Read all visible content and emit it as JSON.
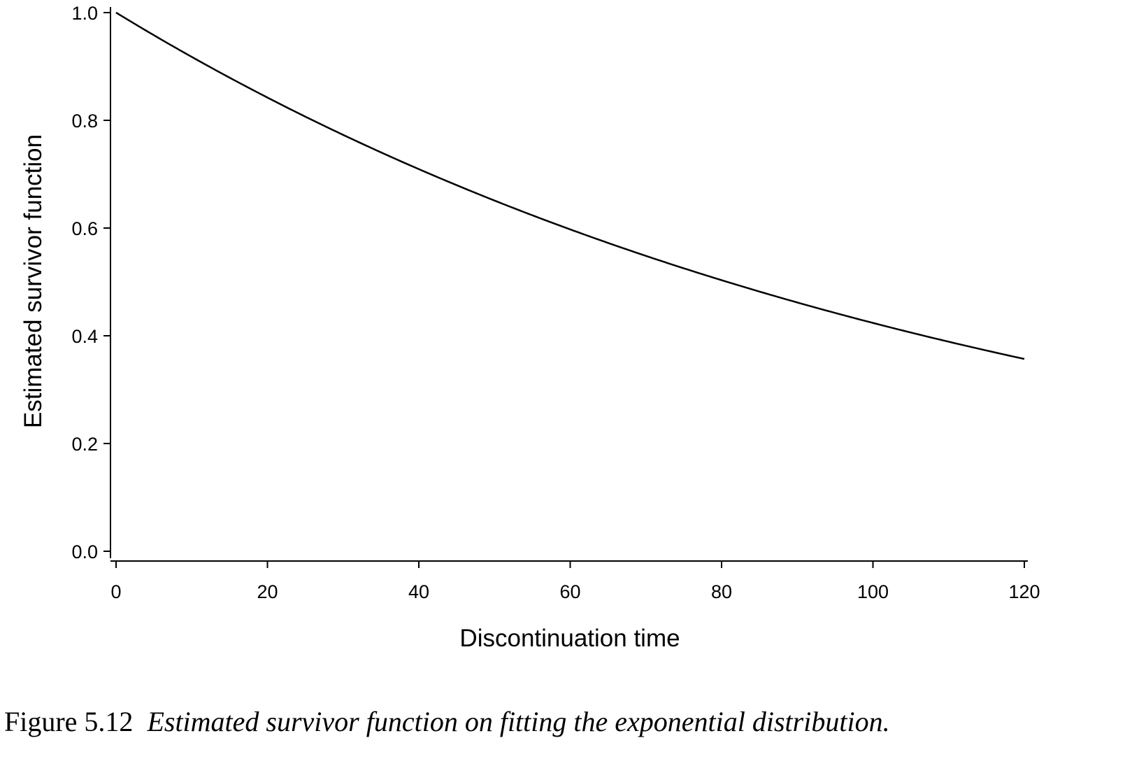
{
  "chart_data": {
    "type": "line",
    "title": "",
    "xlabel": "Discontinuation time",
    "ylabel": "Estimated survivor function",
    "xlim": [
      0,
      120
    ],
    "ylim": [
      0,
      1.0
    ],
    "xticks": [
      0,
      20,
      40,
      60,
      80,
      100,
      120
    ],
    "xtick_labels": [
      "0",
      "20",
      "40",
      "60",
      "80",
      "100",
      "120"
    ],
    "yticks": [
      0,
      0.2,
      0.4,
      0.6,
      0.8,
      1.0
    ],
    "ytick_labels": [
      "0.0",
      "0.2",
      "0.4",
      "0.6",
      "0.8",
      "1.0"
    ],
    "grid": false,
    "series": [
      {
        "name": "Estimated survivor function",
        "x": [
          0,
          10,
          20,
          30,
          40,
          50,
          60,
          70,
          80,
          90,
          100,
          110,
          120
        ],
        "y": [
          1.0,
          0.918,
          0.842,
          0.773,
          0.709,
          0.651,
          0.597,
          0.548,
          0.503,
          0.462,
          0.424,
          0.389,
          0.357
        ],
        "color": "#000000"
      }
    ]
  },
  "caption": {
    "label": "Figure 5.12",
    "text": "Estimated survivor function on fitting the exponential distribution."
  }
}
